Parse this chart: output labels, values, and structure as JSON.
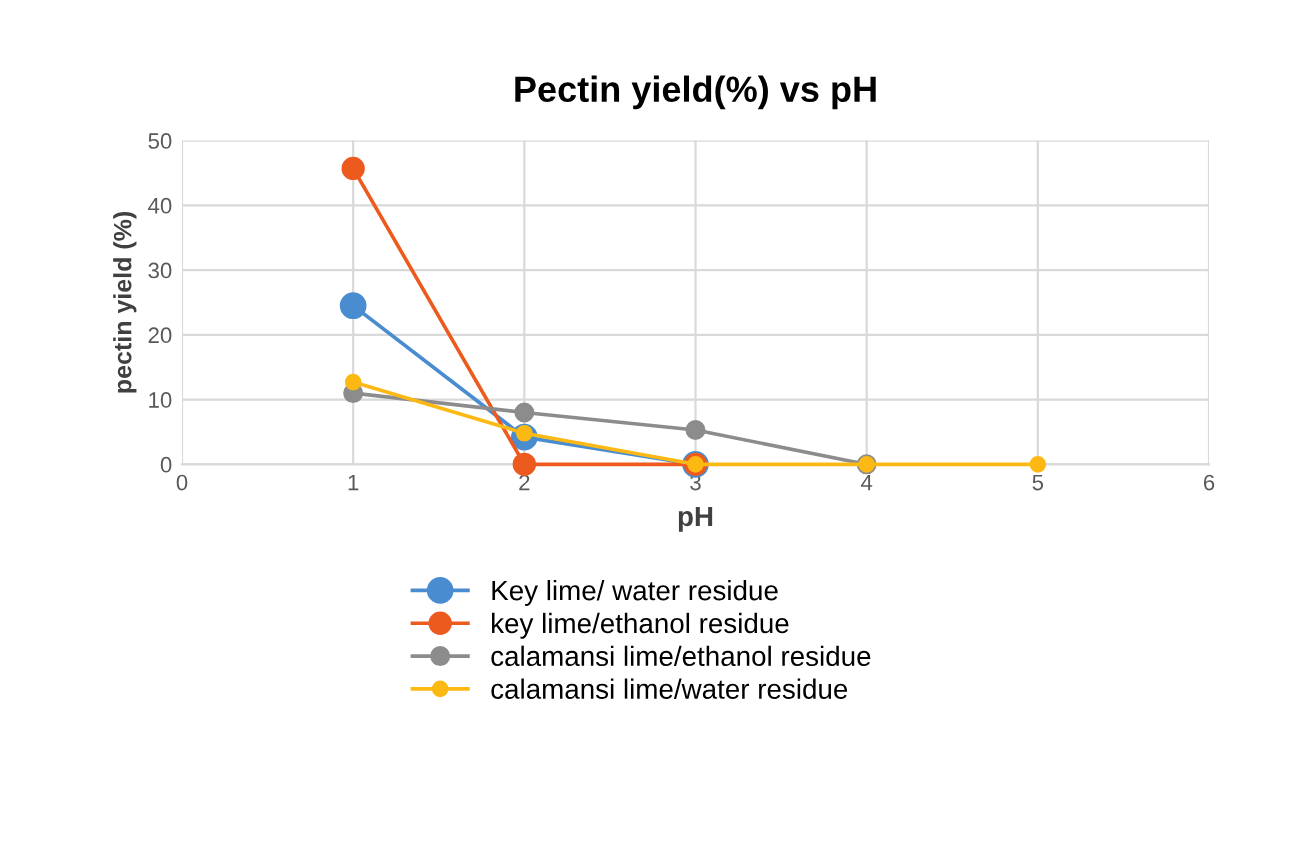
{
  "chart_data": {
    "type": "line",
    "title": "Pectin yield(%) vs pH",
    "xlabel": "pH",
    "ylabel": "pectin yield (%)",
    "xlim": [
      0,
      6
    ],
    "xticks": [
      0,
      1,
      2,
      3,
      4,
      5,
      6
    ],
    "ylim": [
      0,
      50
    ],
    "yticks": [
      0,
      10,
      20,
      30,
      40,
      50
    ],
    "grid": true,
    "legend": "bottom",
    "marker": "circle",
    "line_style": "solid",
    "series": [
      {
        "name": "Key lime/ water residue",
        "color": "#4a8cd0",
        "x": [
          1,
          2,
          3
        ],
        "values": [
          24.5,
          4.2,
          0
        ]
      },
      {
        "name": "key lime/ethanol residue",
        "color": "#ed5a1e",
        "x": [
          1,
          2,
          3
        ],
        "values": [
          45.7,
          0,
          0
        ]
      },
      {
        "name": "calamansi lime/ethanol residue",
        "color": "#8c8c8c",
        "x": [
          1,
          2,
          3,
          4
        ],
        "values": [
          11,
          8,
          5.3,
          0
        ]
      },
      {
        "name": "calamansi lime/water residue",
        "color": "#fdb913",
        "x": [
          1,
          2,
          3,
          4,
          5
        ],
        "values": [
          12.7,
          4.8,
          0,
          0,
          0
        ]
      }
    ]
  }
}
